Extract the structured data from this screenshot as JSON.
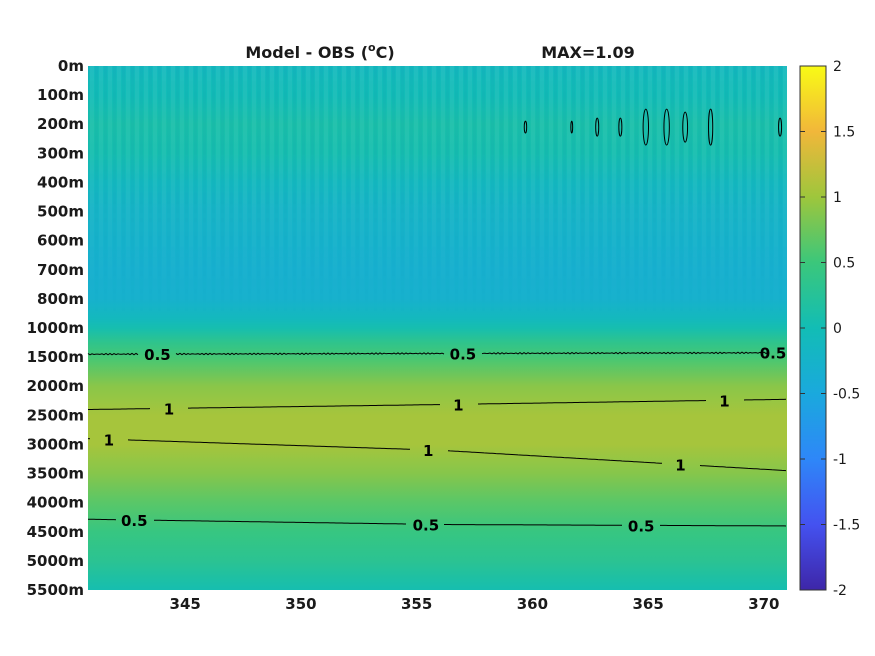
{
  "chart_data": {
    "type": "heatmap",
    "title": "Model - OBS (",
    "title_unit": "C)",
    "title_degree": "o",
    "max_label": "MAX=1.09",
    "x_ticks": [
      345,
      350,
      355,
      360,
      365,
      370
    ],
    "x_range": [
      340.8,
      371
    ],
    "depth_labels": [
      "0m",
      "100m",
      "200m",
      "300m",
      "400m",
      "500m",
      "600m",
      "700m",
      "800m",
      "1000m",
      "1500m",
      "2000m",
      "2500m",
      "3000m",
      "3500m",
      "4000m",
      "4500m",
      "5000m",
      "5500m"
    ],
    "colorbar": {
      "min": -2,
      "max": 2,
      "ticks": [
        "2",
        "1.5",
        "1",
        "0.5",
        "0",
        "-0.5",
        "-1",
        "-1.5",
        "-2"
      ]
    },
    "depth_profile": [
      {
        "level": 0,
        "value": -0.12
      },
      {
        "level": 0.5,
        "value": -0.05
      },
      {
        "level": 1,
        "value": -0.02
      },
      {
        "level": 2,
        "value": 0.1
      },
      {
        "level": 3,
        "value": 0.05
      },
      {
        "level": 4,
        "value": -0.12
      },
      {
        "level": 5,
        "value": -0.22
      },
      {
        "level": 6,
        "value": -0.28
      },
      {
        "level": 7,
        "value": -0.32
      },
      {
        "level": 8,
        "value": -0.3
      },
      {
        "level": 8.7,
        "value": -0.1
      },
      {
        "level": 9,
        "value": 0.05
      },
      {
        "level": 9.5,
        "value": 0.35
      },
      {
        "level": 10,
        "value": 0.55
      },
      {
        "level": 11,
        "value": 0.9
      },
      {
        "level": 12,
        "value": 1.05
      },
      {
        "level": 13,
        "value": 1.05
      },
      {
        "level": 14,
        "value": 0.88
      },
      {
        "level": 15,
        "value": 0.65
      },
      {
        "level": 16,
        "value": 0.45
      },
      {
        "level": 17,
        "value": 0.3
      },
      {
        "level": 17.6,
        "value": 0.15
      },
      {
        "level": 18,
        "value": 0.05
      }
    ],
    "contours": [
      {
        "label": "0.5",
        "points": [
          [
            340.8,
            9.9
          ],
          [
            371,
            9.85
          ]
        ],
        "label_at": [
          343.8,
          357,
          371
        ]
      },
      {
        "label": "1",
        "points": [
          [
            340.8,
            11.8
          ],
          [
            356,
            11.63
          ],
          [
            371,
            11.45
          ]
        ],
        "label_at": [
          344.3,
          356.8,
          368.3
        ]
      },
      {
        "label": "1",
        "points": [
          [
            340.8,
            12.8
          ],
          [
            356,
            13.2
          ],
          [
            371,
            13.9
          ]
        ],
        "label_at": [
          341.7,
          355.5,
          366.4
        ]
      },
      {
        "label": "0.5",
        "points": [
          [
            340.8,
            15.57
          ],
          [
            356,
            15.75
          ],
          [
            371,
            15.8
          ]
        ],
        "label_at": [
          342.8,
          355.4,
          364.7
        ]
      }
    ]
  }
}
